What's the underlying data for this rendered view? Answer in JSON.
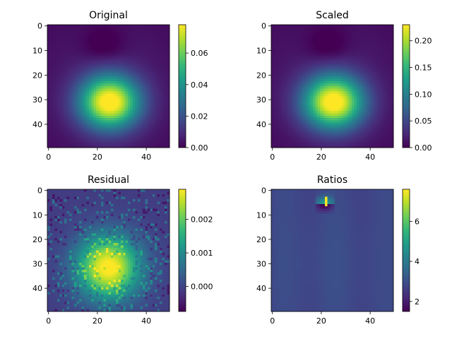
{
  "chart_data": [
    {
      "type": "heatmap",
      "title": "Original",
      "grid_size": [
        50,
        50
      ],
      "x_ticks": [
        "0",
        "20",
        "40"
      ],
      "y_ticks": [
        "0",
        "10",
        "20",
        "30",
        "40"
      ],
      "colorbar_ticks": [
        "0.00",
        "0.02",
        "0.04",
        "0.06"
      ],
      "value_range": [
        0.0,
        0.078
      ],
      "peak": {
        "x": 25,
        "y": 31,
        "value": 0.078
      },
      "minimum": {
        "x": 23,
        "y": 8,
        "value": 0.0
      },
      "grid": false
    },
    {
      "type": "heatmap",
      "title": "Scaled",
      "grid_size": [
        50,
        50
      ],
      "x_ticks": [
        "0",
        "20",
        "40"
      ],
      "y_ticks": [
        "0",
        "10",
        "20",
        "30",
        "40"
      ],
      "colorbar_ticks": [
        "0.00",
        "0.05",
        "0.10",
        "0.15",
        "0.20"
      ],
      "value_range": [
        0.0,
        0.23
      ],
      "peak": {
        "x": 25,
        "y": 31,
        "value": 0.23
      },
      "minimum": {
        "x": 23,
        "y": 8,
        "value": 0.0
      },
      "grid": false
    },
    {
      "type": "heatmap",
      "title": "Residual",
      "grid_size": [
        50,
        50
      ],
      "x_ticks": [
        "0",
        "20",
        "40"
      ],
      "y_ticks": [
        "0",
        "10",
        "20",
        "30",
        "40"
      ],
      "colorbar_ticks": [
        "0.000",
        "0.001",
        "0.002"
      ],
      "value_range": [
        -0.00075,
        0.0029
      ],
      "peak": {
        "x": 25,
        "y": 32,
        "value": 0.0029
      },
      "grid": false
    },
    {
      "type": "heatmap",
      "title": "Ratios",
      "grid_size": [
        50,
        50
      ],
      "x_ticks": [
        "0",
        "20",
        "40"
      ],
      "y_ticks": [
        "0",
        "10",
        "20",
        "30",
        "40"
      ],
      "colorbar_ticks": [
        "2",
        "4",
        "6"
      ],
      "value_range": [
        1.5,
        7.6
      ],
      "background_value": 2.8,
      "peak": {
        "x": 22,
        "y": 5,
        "value": 7.6
      },
      "grid": false
    }
  ],
  "colors": {
    "colormap": "viridis",
    "viridis_stops": [
      "#440154",
      "#482878",
      "#3e4989",
      "#31688e",
      "#26828e",
      "#1f9e89",
      "#35b779",
      "#6ece58",
      "#b5de2b",
      "#fde725"
    ],
    "axes": "#000000",
    "background": "#ffffff"
  }
}
